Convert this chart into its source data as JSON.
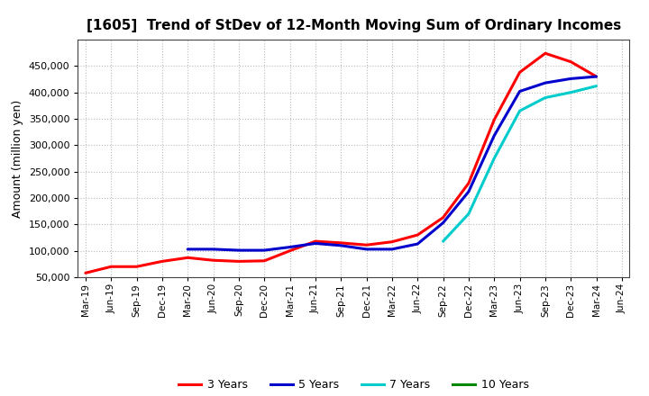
{
  "title": "[1605]  Trend of StDev of 12-Month Moving Sum of Ordinary Incomes",
  "ylabel": "Amount (million yen)",
  "background_color": "#ffffff",
  "grid_color": "#bbbbbb",
  "x_labels": [
    "Mar-19",
    "Jun-19",
    "Sep-19",
    "Dec-19",
    "Mar-20",
    "Jun-20",
    "Sep-20",
    "Dec-20",
    "Mar-21",
    "Jun-21",
    "Sep-21",
    "Dec-21",
    "Mar-22",
    "Jun-22",
    "Sep-22",
    "Dec-22",
    "Mar-23",
    "Jun-23",
    "Sep-23",
    "Dec-23",
    "Mar-24",
    "Jun-24"
  ],
  "series": {
    "3 Years": {
      "color": "#ff0000",
      "data": [
        58000,
        70000,
        70000,
        80000,
        87000,
        82000,
        80000,
        81000,
        100000,
        118000,
        115000,
        111000,
        117000,
        130000,
        163000,
        228000,
        348000,
        438000,
        474000,
        458000,
        430000,
        null
      ]
    },
    "5 Years": {
      "color": "#0000cc",
      "data": [
        null,
        null,
        null,
        null,
        103000,
        103000,
        101000,
        101000,
        107000,
        114000,
        110000,
        103000,
        103000,
        113000,
        153000,
        212000,
        318000,
        402000,
        418000,
        426000,
        430000,
        null
      ]
    },
    "7 Years": {
      "color": "#00cccc",
      "data": [
        null,
        null,
        null,
        null,
        null,
        null,
        null,
        null,
        null,
        null,
        null,
        null,
        null,
        null,
        118000,
        170000,
        275000,
        365000,
        390000,
        400000,
        412000,
        null
      ]
    },
    "10 Years": {
      "color": "#008800",
      "data": [
        null,
        null,
        null,
        null,
        null,
        null,
        null,
        null,
        null,
        null,
        null,
        null,
        null,
        null,
        null,
        null,
        null,
        null,
        null,
        null,
        null,
        null
      ]
    }
  },
  "ylim": [
    50000,
    500000
  ],
  "yticks": [
    50000,
    100000,
    150000,
    200000,
    250000,
    300000,
    350000,
    400000,
    450000
  ],
  "legend_labels": [
    "3 Years",
    "5 Years",
    "7 Years",
    "10 Years"
  ],
  "legend_colors": [
    "#ff0000",
    "#0000cc",
    "#00cccc",
    "#008800"
  ]
}
